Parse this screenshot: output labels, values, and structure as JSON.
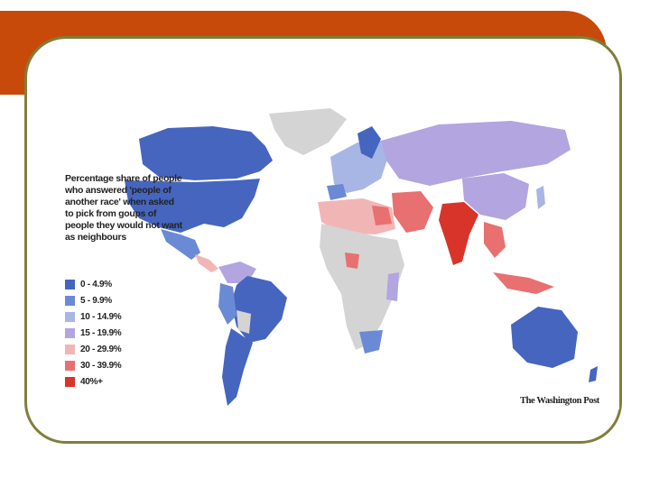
{
  "slide": {
    "title": ""
  },
  "map": {
    "legend_title": "Percentage share of people who answered 'people of another race' when asked to pick from goups of people they would not want as neighbours",
    "legend": [
      {
        "label": "0 - 4.9%",
        "color": "#4565bf"
      },
      {
        "label": "5 - 9.9%",
        "color": "#6a8ad6"
      },
      {
        "label": "10 - 14.9%",
        "color": "#a8b6e6"
      },
      {
        "label": "15 - 19.9%",
        "color": "#b2a5e0"
      },
      {
        "label": "20 - 29.9%",
        "color": "#f2b5b5"
      },
      {
        "label": "30 - 39.9%",
        "color": "#e87070"
      },
      {
        "label": "40%+",
        "color": "#d9342a"
      }
    ],
    "credit": "The Washington Post",
    "no_data_color": "#d4d4d4"
  }
}
